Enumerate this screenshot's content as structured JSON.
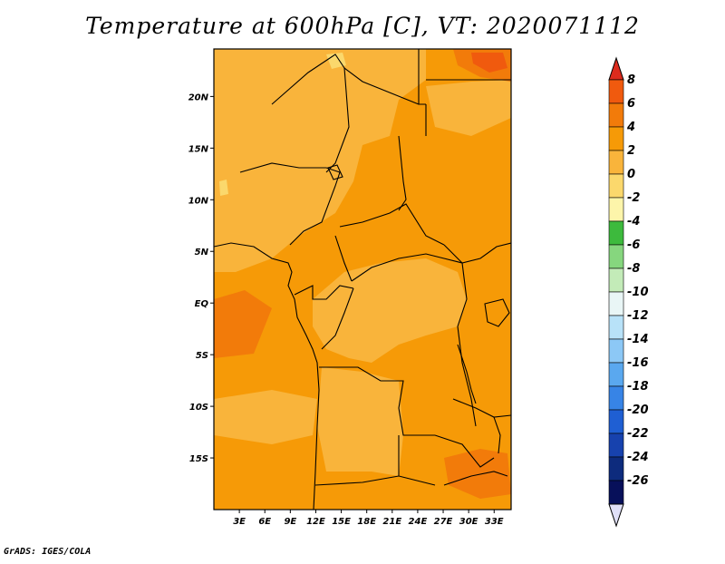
{
  "title": "Temperature at 600hPa [C], VT: 2020071112",
  "footer": "GrADS: IGES/COLA",
  "lat_labels": [
    "20N",
    "15N",
    "10N",
    "5N",
    "EQ",
    "5S",
    "10S",
    "15S"
  ],
  "lat_values": [
    20,
    15,
    10,
    5,
    0,
    -5,
    -10,
    -15
  ],
  "lon_labels": [
    "3E",
    "6E",
    "9E",
    "12E",
    "15E",
    "18E",
    "21E",
    "24E",
    "27E",
    "30E",
    "33E"
  ],
  "lon_values": [
    3,
    6,
    9,
    12,
    15,
    18,
    21,
    24,
    27,
    30,
    33
  ],
  "extent": {
    "lon": [
      0,
      35
    ],
    "lat": [
      -20,
      24.6
    ]
  },
  "colorbar": {
    "labels": [
      "8",
      "6",
      "4",
      "2",
      "0",
      "-2",
      "-4",
      "-6",
      "-8",
      "-10",
      "-12",
      "-14",
      "-16",
      "-18",
      "-20",
      "-22",
      "-24",
      "-26"
    ],
    "colors": [
      "#dc2b1d",
      "#f05a0e",
      "#f27b0a",
      "#f69a07",
      "#f9b43b",
      "#fbd86c",
      "#fdf5aa",
      "#3dba3d",
      "#86d67e",
      "#c3ebb8",
      "#e9f6f6",
      "#b8e2f8",
      "#8cc8f6",
      "#5aa8ef",
      "#3784e6",
      "#1f5fd3",
      "#1742ae",
      "#0d2b7d",
      "#07105a",
      "#e0e0f8"
    ]
  },
  "colors": {
    "warm_plus2_4": "#f69a07",
    "warm_0_2": "#f9b43b",
    "warm_4_6": "#f27b0a",
    "warm_6_8": "#f05a0e",
    "cool_minus2_0": "#fbd86c"
  }
}
